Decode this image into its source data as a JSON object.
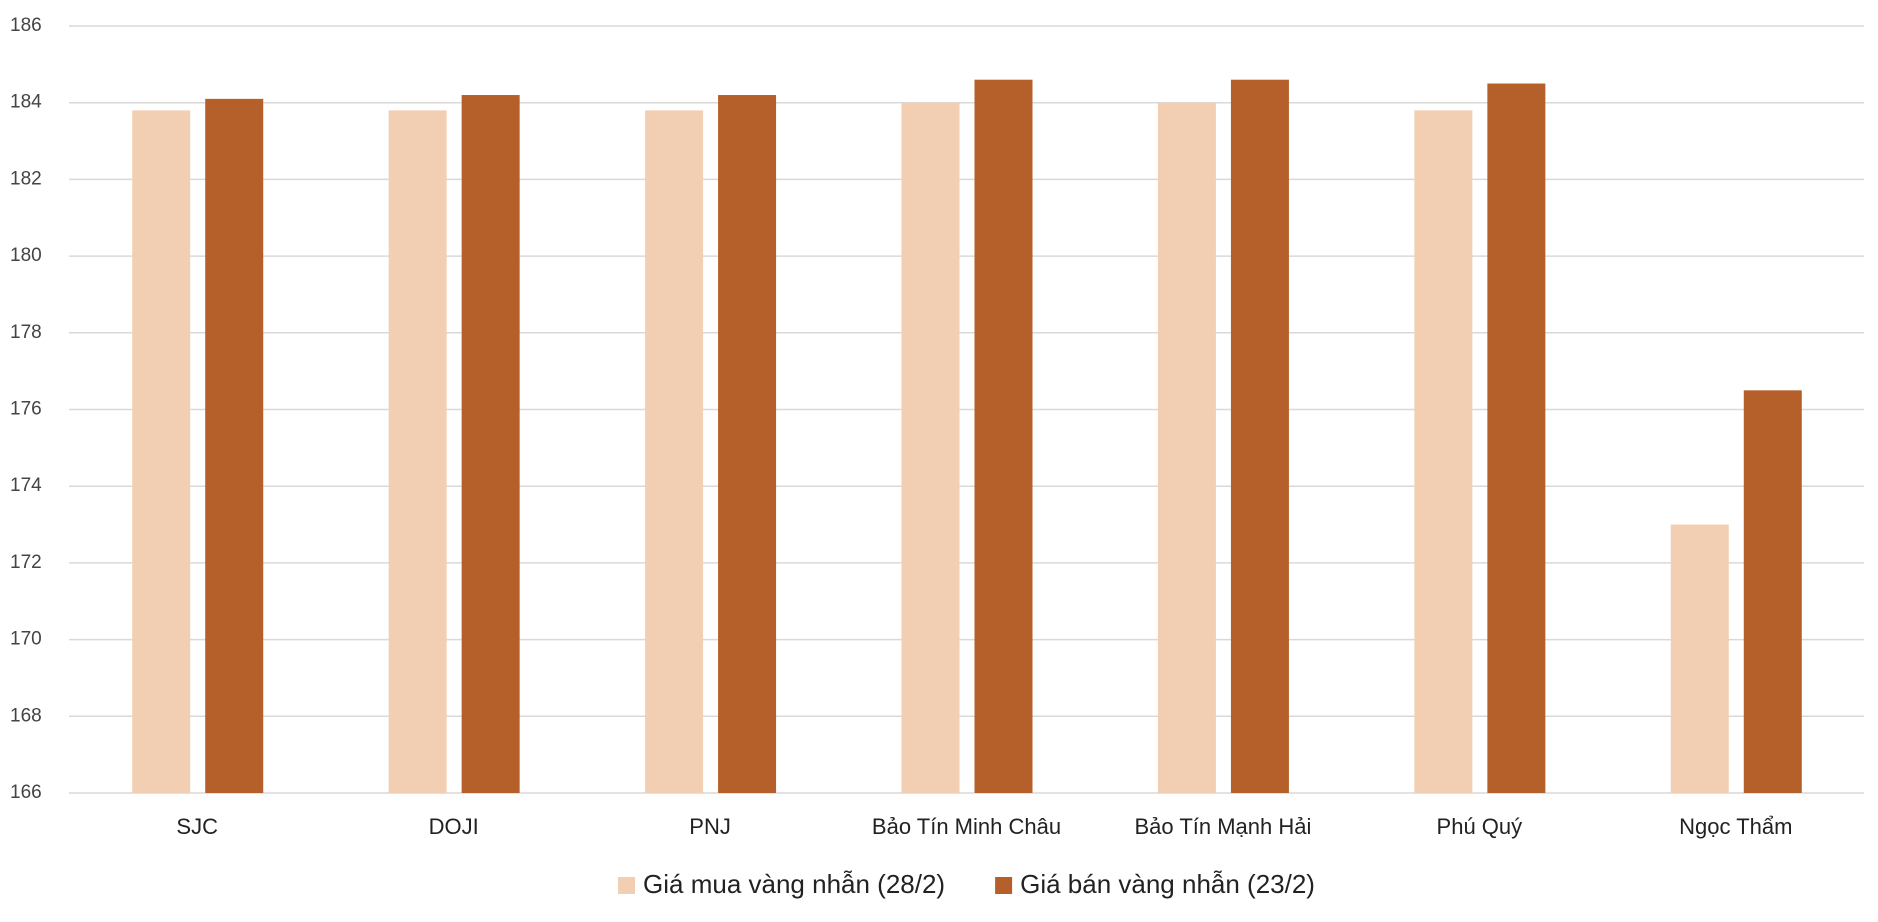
{
  "chart_data": {
    "type": "bar",
    "categories": [
      "SJC",
      "DOJI",
      "PNJ",
      "Bảo Tín Minh Châu",
      "Bảo Tín Mạnh Hải",
      "Phú Quý",
      "Ngọc Thẩm"
    ],
    "series": [
      {
        "name": "Giá mua vàng nhẫn (28/2)",
        "color": "#f2cfb3",
        "values": [
          183.8,
          183.8,
          183.8,
          184.0,
          184.0,
          183.8,
          173.0
        ]
      },
      {
        "name": "Giá bán vàng nhẫn (23/2)",
        "color": "#b5602a",
        "values": [
          184.1,
          184.2,
          184.2,
          184.6,
          184.6,
          184.5,
          176.5
        ]
      }
    ],
    "ylim": [
      166,
      186
    ],
    "yticks": [
      166,
      168,
      170,
      172,
      174,
      176,
      178,
      180,
      182,
      184,
      186
    ],
    "grid": true,
    "legend": "bottom"
  }
}
